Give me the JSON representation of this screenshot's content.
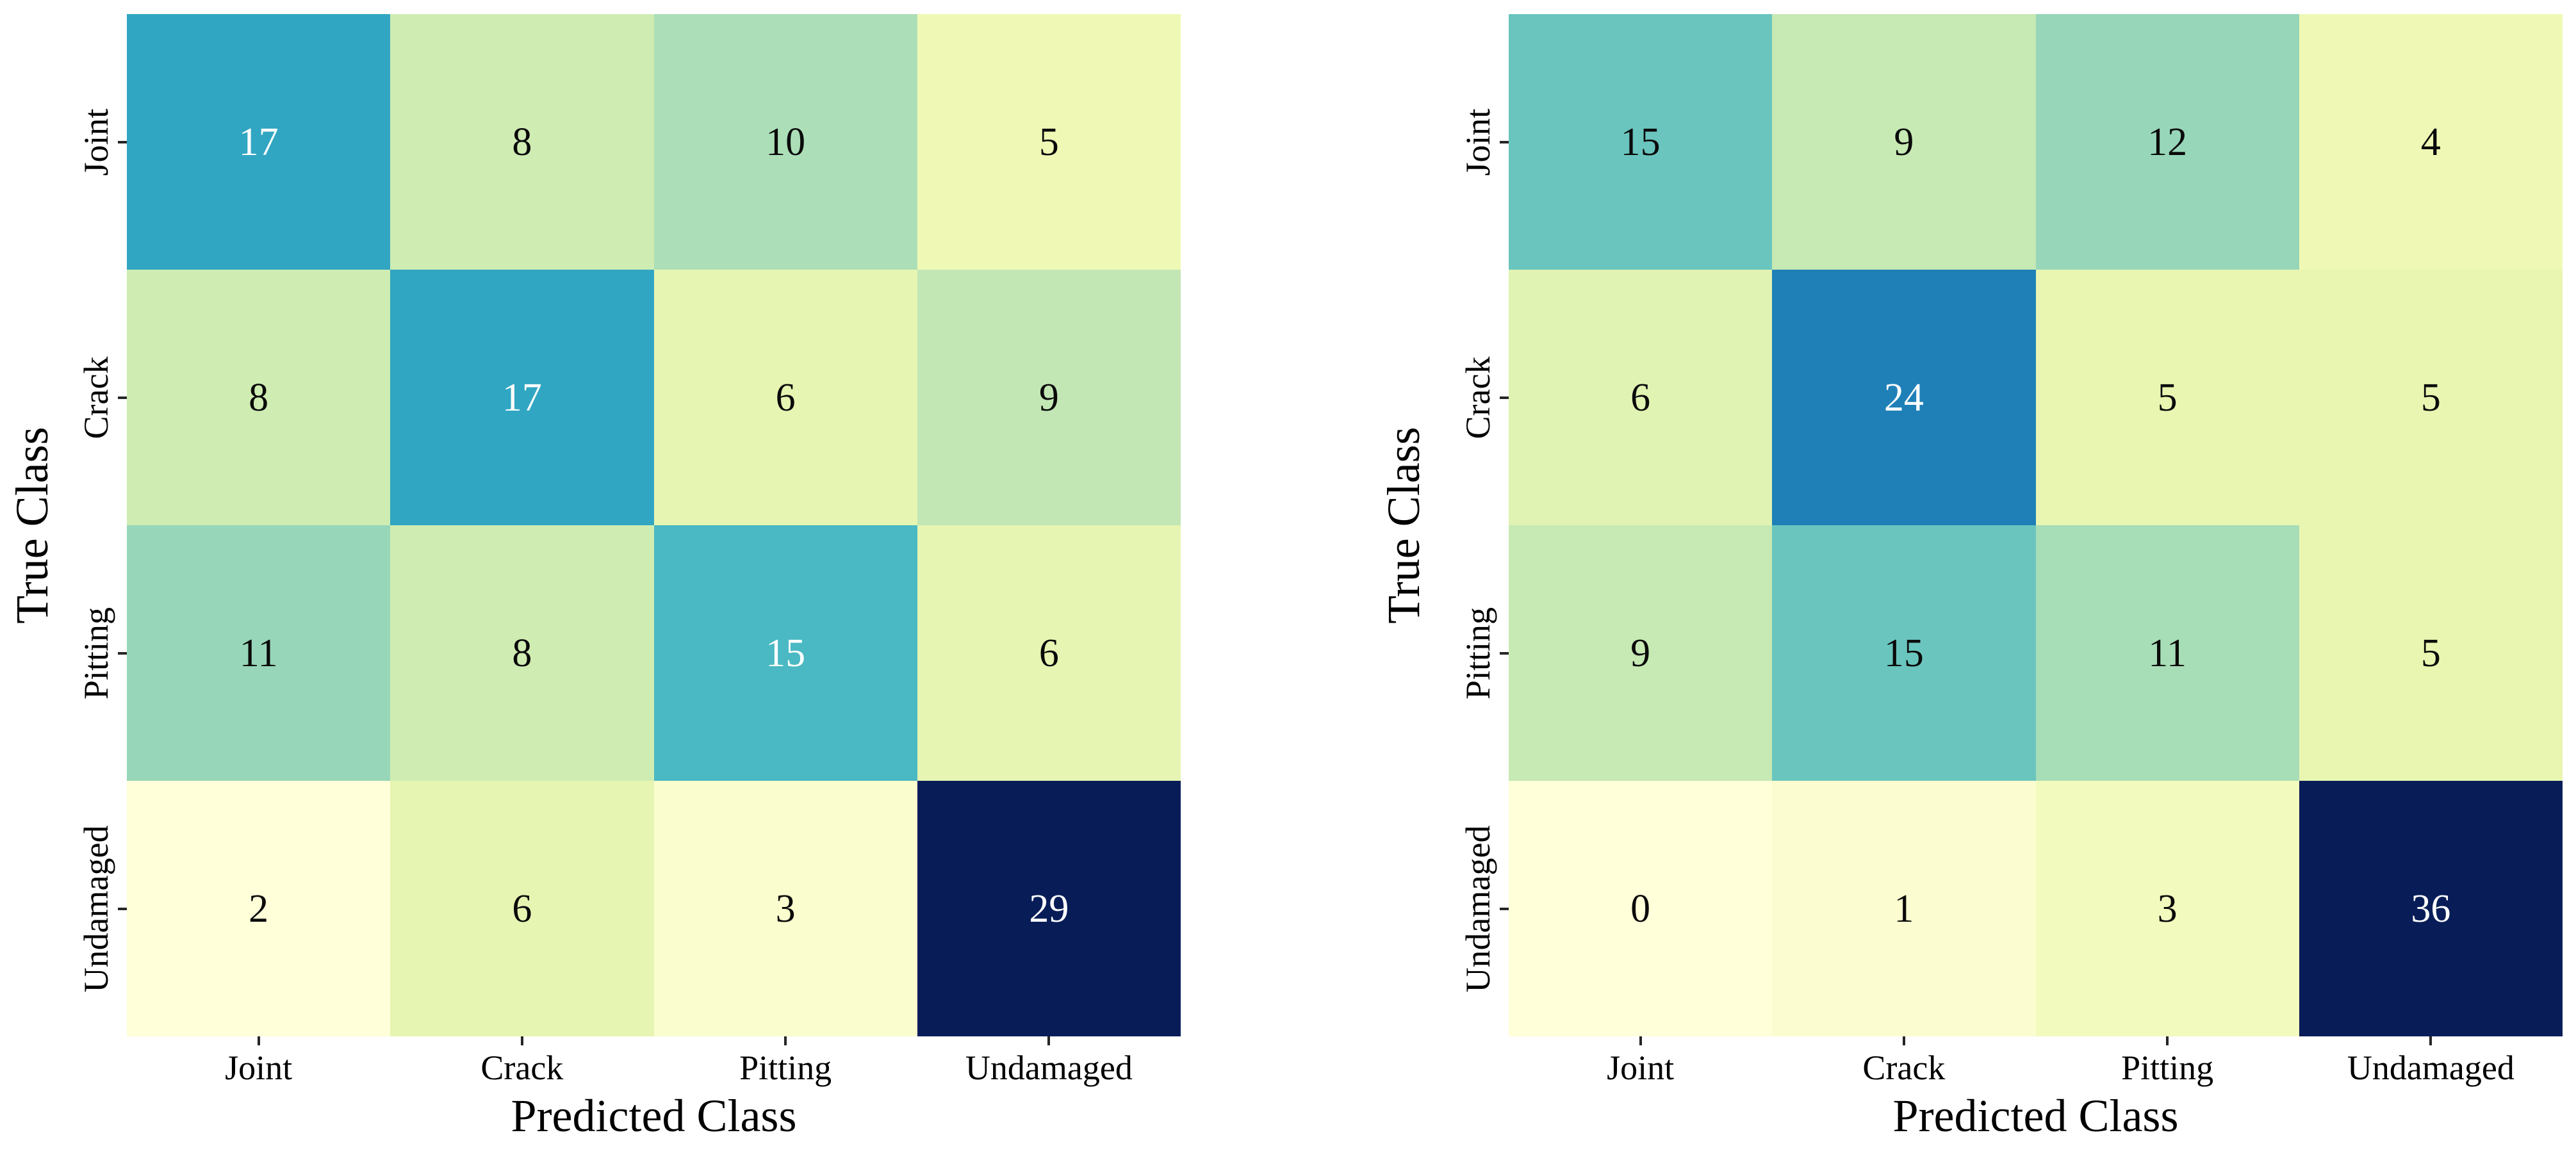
{
  "figure": {
    "background": "#ffffff",
    "tick_color": "#262626",
    "label_color": "#000000",
    "cell_text_dark": "#0a0a0a",
    "cell_text_light": "#ffffff"
  },
  "colormap": {
    "name": "YlGnBu",
    "stops": [
      "#ffffd9",
      "#edf8b1",
      "#c7e9b4",
      "#7fcdbb",
      "#41b6c4",
      "#1d91c0",
      "#225ea8",
      "#253494",
      "#081d58"
    ]
  },
  "chart_data": [
    {
      "type": "heatmap",
      "title": "",
      "xlabel": "Predicted Class",
      "ylabel": "True Class",
      "x_categories": [
        "Joint",
        "Crack",
        "Pitting",
        "Undamaged"
      ],
      "y_categories": [
        "Joint",
        "Crack",
        "Pitting",
        "Undamaged"
      ],
      "values": [
        [
          17,
          8,
          10,
          5
        ],
        [
          8,
          17,
          6,
          9
        ],
        [
          11,
          8,
          15,
          6
        ],
        [
          2,
          6,
          3,
          29
        ]
      ],
      "vmin": 2,
      "vmax": 29,
      "legend": "none",
      "grid": false
    },
    {
      "type": "heatmap",
      "title": "",
      "xlabel": "Predicted Class",
      "ylabel": "True Class",
      "x_categories": [
        "Joint",
        "Crack",
        "Pitting",
        "Undamaged"
      ],
      "y_categories": [
        "Joint",
        "Crack",
        "Pitting",
        "Undamaged"
      ],
      "values": [
        [
          15,
          9,
          12,
          4
        ],
        [
          6,
          24,
          5,
          5
        ],
        [
          9,
          15,
          11,
          5
        ],
        [
          0,
          1,
          3,
          36
        ]
      ],
      "vmin": 0,
      "vmax": 36,
      "legend": "none",
      "grid": false
    }
  ]
}
